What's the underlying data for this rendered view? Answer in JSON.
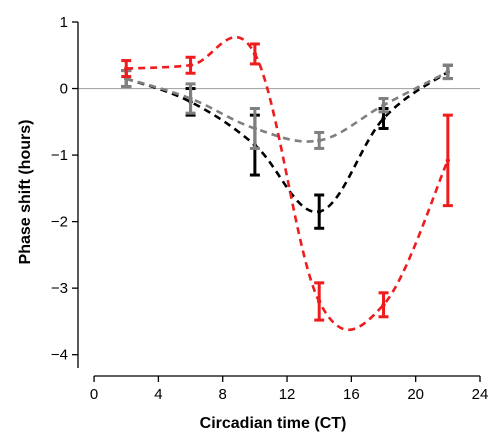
{
  "chart_data": {
    "type": "line",
    "title": "",
    "xlabel": "Circadian time (CT)",
    "ylabel": "Phase shift (hours)",
    "xlim": [
      -1,
      24
    ],
    "ylim": [
      -4.2,
      1
    ],
    "xticks": [
      0,
      4,
      8,
      12,
      16,
      20,
      24
    ],
    "yticks": [
      1,
      0,
      -1,
      -2,
      -3,
      -4
    ],
    "reference_line": 0,
    "grid": false,
    "legend": "none",
    "line_style": "dashed",
    "series": [
      {
        "color": "#000000",
        "x": [
          2,
          6,
          10,
          14,
          18,
          22
        ],
        "y": [
          0.15,
          -0.2,
          -0.85,
          -1.85,
          -0.45,
          0.25
        ],
        "err": [
          0.12,
          0.2,
          0.45,
          0.25,
          0.15,
          0.1
        ]
      },
      {
        "color": "#808080",
        "x": [
          2,
          6,
          10,
          14,
          18,
          22
        ],
        "y": [
          0.15,
          -0.15,
          -0.6,
          -0.78,
          -0.25,
          0.25
        ],
        "err": [
          0.12,
          0.22,
          0.3,
          0.12,
          0.1,
          0.1
        ]
      },
      {
        "color": "#ee1c1c",
        "x": [
          2,
          6,
          10,
          14,
          18,
          22
        ],
        "y": [
          0.3,
          0.35,
          0.52,
          -3.2,
          -3.25,
          -1.08
        ],
        "err": [
          0.12,
          0.12,
          0.15,
          0.28,
          0.18,
          0.68
        ]
      }
    ]
  }
}
